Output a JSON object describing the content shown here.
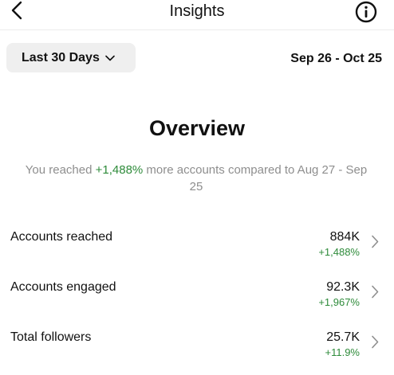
{
  "header": {
    "title": "Insights",
    "back_icon": "chevron-left-icon",
    "info_icon": "info-icon"
  },
  "filters": {
    "range_label": "Last 30 Days",
    "date_range": "Sep 26 - Oct 25"
  },
  "overview": {
    "title": "Overview",
    "summary_prefix": "You reached ",
    "summary_highlight": "+1,488%",
    "summary_suffix": " more accounts compared to Aug 27 - Sep 25"
  },
  "metrics": [
    {
      "label": "Accounts reached",
      "value": "884K",
      "change": "+1,488%"
    },
    {
      "label": "Accounts engaged",
      "value": "92.3K",
      "change": "+1,967%"
    },
    {
      "label": "Total followers",
      "value": "25.7K",
      "change": "+11.9%"
    }
  ],
  "colors": {
    "positive": "#2e8b3a",
    "muted_text": "#8e8e8e",
    "pill_bg": "#efefef"
  }
}
